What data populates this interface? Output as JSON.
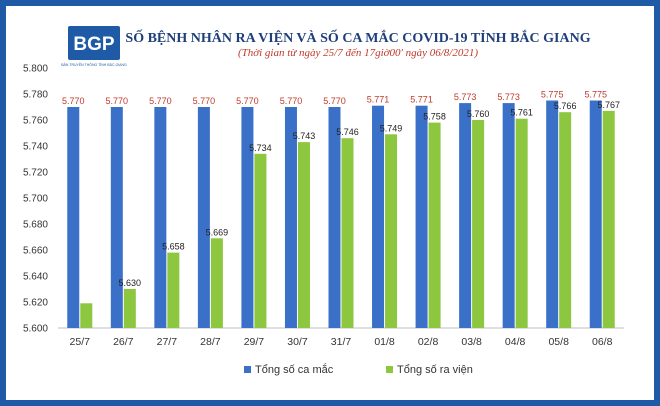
{
  "logo": {
    "text": "BGP",
    "subtitle": "BẢN TRUYỀN THÔNG TỈNH BẮC GIANG"
  },
  "chart_data": {
    "type": "bar",
    "title": "SỐ BỆNH NHÂN RA VIỆN VÀ SỐ CA MẮC COVID-19 TỈNH BẮC GIANG",
    "subtitle": "(Thời gian từ ngày 25/7 đến 17giờ00' ngày 06/8/2021)",
    "categories": [
      "25/7",
      "26/7",
      "27/7",
      "28/7",
      "29/7",
      "30/7",
      "31/7",
      "01/8",
      "02/8",
      "03/8",
      "04/8",
      "05/8",
      "06/8"
    ],
    "series": [
      {
        "name": "Tổng số ca mắc",
        "color": "#3a70c8",
        "values": [
          5770,
          5770,
          5770,
          5770,
          5770,
          5770,
          5770,
          5771,
          5771,
          5773,
          5773,
          5775,
          5775
        ],
        "labels": [
          "5.770",
          "5.770",
          "5.770",
          "5.770",
          "5.770",
          "5.770",
          "5.770",
          "5.771",
          "5.771",
          "5.773",
          "5.773",
          "5.775",
          "5.775"
        ]
      },
      {
        "name": "Tổng số ra viện",
        "color": "#8dc63f",
        "values": [
          5619,
          5630,
          5658,
          5669,
          5734,
          5743,
          5746,
          5749,
          5758,
          5760,
          5761,
          5766,
          5767
        ],
        "labels": [
          "",
          "5.630",
          "5.658",
          "5.669",
          "5.734",
          "5.743",
          "5.746",
          "5.749",
          "5.758",
          "5.760",
          "5.761",
          "5.766",
          "5.767"
        ]
      }
    ],
    "ylim": [
      5600,
      5800
    ],
    "yticks": [
      5600,
      5620,
      5640,
      5660,
      5680,
      5700,
      5720,
      5740,
      5760,
      5780,
      5800
    ],
    "ytick_labels": [
      "5.600",
      "5.620",
      "5.640",
      "5.660",
      "5.680",
      "5.700",
      "5.720",
      "5.740",
      "5.760",
      "5.780",
      "5.800"
    ],
    "grid": false,
    "legend_position": "bottom"
  }
}
